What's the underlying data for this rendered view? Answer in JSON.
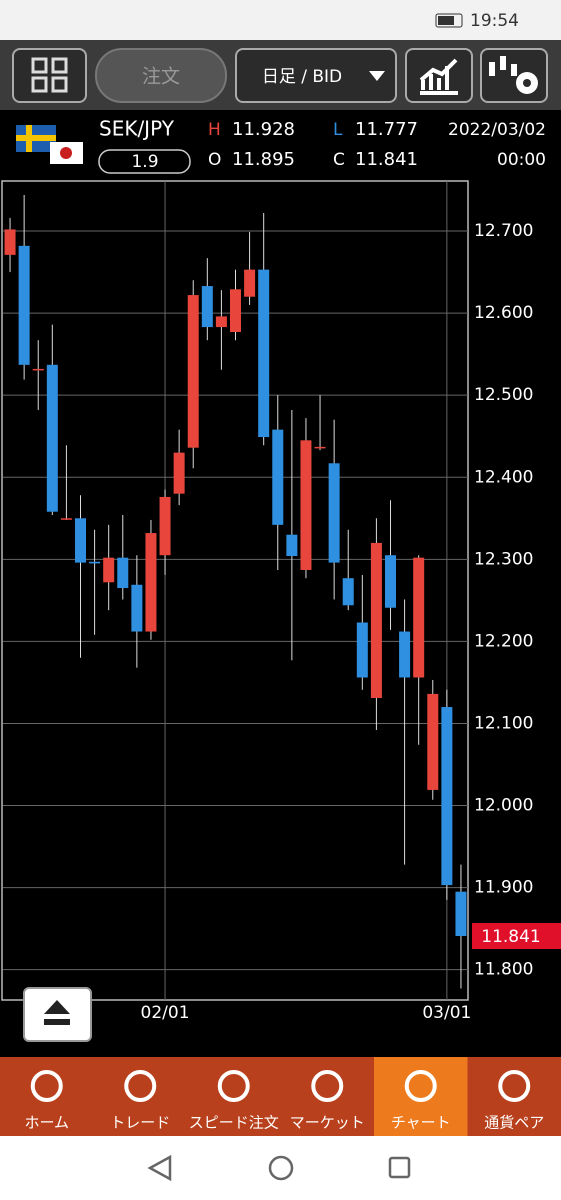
{
  "status_bar": {
    "time": "19:54"
  },
  "toolbar": {
    "order": "注文",
    "period": "日足 / BID"
  },
  "quote": {
    "symbol": "SEK/JPY",
    "spread": "1.9",
    "high_label": "H",
    "high": "11.928",
    "low_label": "L",
    "low": "11.777",
    "open_label": "O",
    "open": "11.895",
    "close_label": "C",
    "close": "11.841",
    "date": "2022/03/02",
    "time": "00:00"
  },
  "chart_data": {
    "type": "candlestick",
    "categories": [
      null,
      null,
      null,
      null,
      null,
      null,
      null,
      null,
      null,
      null,
      null,
      "02/01",
      null,
      null,
      null,
      null,
      null,
      null,
      null,
      null,
      null,
      null,
      null,
      null,
      null,
      null,
      null,
      null,
      null,
      null,
      null,
      "03/01",
      null
    ],
    "open": [
      12.671,
      12.682,
      12.532,
      12.537,
      12.35,
      12.35,
      12.297,
      12.272,
      12.302,
      12.269,
      12.212,
      12.305,
      12.38,
      12.436,
      12.633,
      12.583,
      12.577,
      12.62,
      12.653,
      12.458,
      12.33,
      12.287,
      12.437,
      12.417,
      12.277,
      12.223,
      12.131,
      12.305,
      12.212,
      12.156,
      12.019,
      12.12,
      11.895
    ],
    "high": [
      12.716,
      12.744,
      12.567,
      12.586,
      12.439,
      12.378,
      12.336,
      12.342,
      12.354,
      12.305,
      12.348,
      12.385,
      12.458,
      12.64,
      12.667,
      12.628,
      12.653,
      12.699,
      12.722,
      12.5,
      12.482,
      12.472,
      12.5,
      12.47,
      12.336,
      12.281,
      12.35,
      12.372,
      12.251,
      12.305,
      12.153,
      12.141,
      11.928
    ],
    "low": [
      12.65,
      12.519,
      12.482,
      12.354,
      12.348,
      12.18,
      12.208,
      12.238,
      12.251,
      12.168,
      12.202,
      12.281,
      12.366,
      12.411,
      12.567,
      12.531,
      12.567,
      12.61,
      12.439,
      12.287,
      12.177,
      12.277,
      12.433,
      12.251,
      12.238,
      12.141,
      12.092,
      12.214,
      11.928,
      12.074,
      12.007,
      11.885,
      11.777
    ],
    "close": [
      12.702,
      12.537,
      12.532,
      12.358,
      12.35,
      12.296,
      12.295,
      12.302,
      12.265,
      12.212,
      12.332,
      12.376,
      12.43,
      12.622,
      12.583,
      12.596,
      12.629,
      12.653,
      12.449,
      12.342,
      12.304,
      12.445,
      12.437,
      12.296,
      12.244,
      12.156,
      12.32,
      12.241,
      12.156,
      12.302,
      12.136,
      11.903,
      11.841
    ],
    "up_color": "#e8453c",
    "down_color": "#2f8fe0",
    "ylim": [
      11.763,
      12.761
    ],
    "yticks": [
      {
        "value": 11.8,
        "label": "11.800"
      },
      {
        "value": 11.9,
        "label": "11.900"
      },
      {
        "value": 12.0,
        "label": "12.000"
      },
      {
        "value": 12.1,
        "label": "12.100"
      },
      {
        "value": 12.2,
        "label": "12.200"
      },
      {
        "value": 12.3,
        "label": "12.300"
      },
      {
        "value": 12.4,
        "label": "12.400"
      },
      {
        "value": 12.5,
        "label": "12.500"
      },
      {
        "value": 12.6,
        "label": "12.600"
      },
      {
        "value": 12.7,
        "label": "12.700"
      }
    ],
    "grid": true
  },
  "nav": {
    "items": [
      "ホーム",
      "トレード",
      "スピード注文",
      "マーケット",
      "チャート",
      "通貨ペア"
    ],
    "selected": 4
  }
}
